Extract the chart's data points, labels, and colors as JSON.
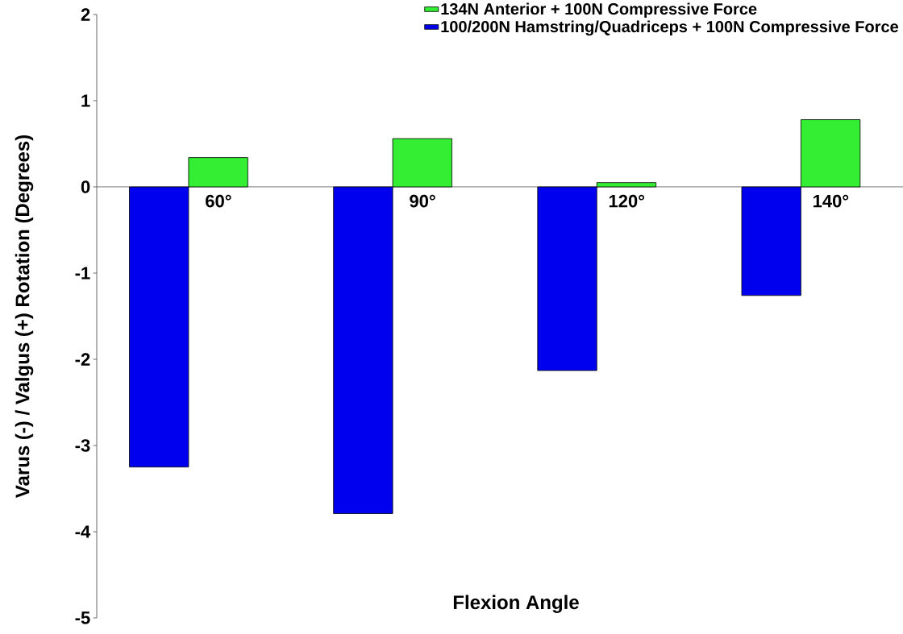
{
  "chart_data": {
    "type": "bar",
    "xlabel": "Flexion Angle",
    "ylabel": "Varus (-) / Valgus (+) Rotation (Degrees)",
    "categories": [
      "60°",
      "90°",
      "120°",
      "140°"
    ],
    "series": [
      {
        "name": "100/200N Hamstring/Quadriceps + 100N Compressive Force",
        "color": "#0000ee",
        "values": [
          -3.25,
          -3.79,
          -2.13,
          -1.26
        ]
      },
      {
        "name": "134N Anterior + 100N Compressive Force",
        "color": "#33ee33",
        "values": [
          0.34,
          0.56,
          0.05,
          0.78
        ]
      }
    ],
    "ylim": [
      -5,
      2
    ],
    "yticks": [
      -5,
      -4,
      -3,
      -2,
      -1,
      0,
      1,
      2
    ],
    "legend": "top right"
  }
}
